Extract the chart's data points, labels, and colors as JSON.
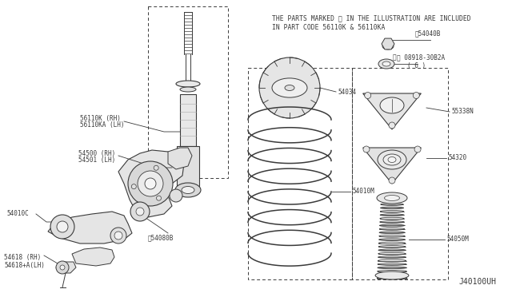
{
  "bg_color": "#ffffff",
  "fig_bg": "#ffffff",
  "diagram_note_line1": "THE PARTS MARKED ※ IN THE ILLUSTRATION ARE INCLUDED",
  "diagram_note_line2": "IN PART CODE 56110K & 56110KA",
  "part_code": "J40100UH",
  "col": "#3a3a3a",
  "lw": 0.8
}
